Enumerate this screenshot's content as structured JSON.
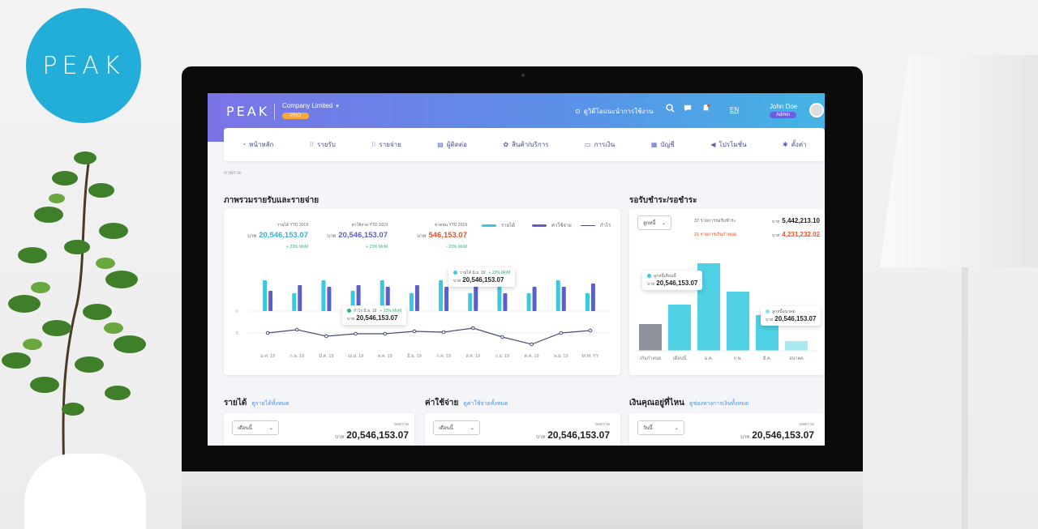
{
  "brand": {
    "circle_logo": "PEAK",
    "color": "#22aed8"
  },
  "header": {
    "logo": "PEAK",
    "company": "Company Limited",
    "plan_badge": "PRO",
    "guide_link": "ดูวิดีโอแนะนำการใช้งาน",
    "language": "EN",
    "user_name": "John Doe",
    "user_role": "Admin",
    "icons": [
      "search-icon",
      "chat-icon",
      "bell-icon"
    ]
  },
  "nav": {
    "items": [
      {
        "label": "หน้าหลัก",
        "icon": "dashboard-icon"
      },
      {
        "label": "รายรับ",
        "icon": "income-icon"
      },
      {
        "label": "รายจ่าย",
        "icon": "expense-icon"
      },
      {
        "label": "ผู้ติดต่อ",
        "icon": "contacts-icon"
      },
      {
        "label": "สินค้า/บริการ",
        "icon": "products-icon"
      },
      {
        "label": "การเงิน",
        "icon": "finance-icon"
      },
      {
        "label": "บัญชี",
        "icon": "accounting-icon"
      },
      {
        "label": "โปรโมชั่น",
        "icon": "promotion-icon"
      },
      {
        "label": "ตั้งค่า",
        "icon": "settings-icon"
      }
    ]
  },
  "breadcrumb": "ภาพรวม",
  "overview": {
    "title": "ภาพรวมรายรับและรายจ่าย",
    "kpis": [
      {
        "label": "รายได้ YTD 2019",
        "unit": "บาท",
        "value": "20,546,153.07",
        "change": "+ 23% MoM",
        "color": "#2bb3d6"
      },
      {
        "label": "ค่าใช้จ่าย YTD 2019",
        "unit": "บาท",
        "value": "20,546,153.07",
        "change": "+ 23% MoM",
        "color": "#5b5fc7"
      },
      {
        "label": "ขาดทุน YTD 2019",
        "unit": "บาท",
        "value": "546,153.07",
        "change": "- 23% MoM",
        "color": "#f04e23"
      }
    ],
    "legend": [
      {
        "label": "รายได้",
        "color": "#3cc8dc"
      },
      {
        "label": "ค่าใช้จ่าย",
        "color": "#5b5fc7"
      },
      {
        "label": "กำไร",
        "color": "#4a4d7a"
      }
    ],
    "tooltip_income": {
      "label": "รายได้ มิ.ย. 19",
      "change": "+ 23% MoM",
      "unit": "บาท",
      "value": "20,546,153.07"
    },
    "tooltip_profit": {
      "label": "กำไร มิ.ย. 19",
      "change": "+ 23% MoM",
      "unit": "บาท",
      "value": "20,546,153.07"
    }
  },
  "chart_data": [
    {
      "type": "bar",
      "categories": [
        "ม.ค. 19",
        "ก.พ. 19",
        "มี.ค. 19",
        "เม.ย. 19",
        "พ.ค. 19",
        "มิ.ย. 19",
        "ก.ค. 19",
        "ส.ค. 19",
        "ก.ย. 19",
        "ต.ค. 19",
        "พ.ย. 19",
        "M.M. YY"
      ],
      "y_tick_labels": [
        "0",
        "0"
      ],
      "series": [
        {
          "name": "รายได้",
          "type": "bar",
          "values": [
            38,
            22,
            38,
            25,
            38,
            22,
            38,
            22,
            38,
            22,
            38,
            22
          ]
        },
        {
          "name": "ค่าใช้จ่าย",
          "type": "bar",
          "values": [
            25,
            32,
            30,
            32,
            30,
            32,
            30,
            32,
            22,
            30,
            30,
            34
          ]
        },
        {
          "name": "กำไร",
          "type": "line",
          "values": [
            0,
            4,
            -4,
            -1,
            -1,
            2,
            1,
            6,
            -5,
            -14,
            0,
            3
          ]
        }
      ]
    },
    {
      "type": "bar",
      "categories": [
        "เกินกำหนด",
        "เดือนนี้",
        "ม.ค.",
        "ก.พ.",
        "มี.ค.",
        "อนาคต"
      ],
      "series": [
        {
          "name": "ลูกหนี้",
          "values": [
            33,
            57,
            108,
            73,
            44,
            12
          ]
        }
      ]
    }
  ],
  "receivable": {
    "title": "รอรับชำระ/รอชำระ",
    "filter": "ลูกหนี้",
    "rows": [
      {
        "label": "37 รายการรอรับชำระ",
        "unit": "บาท",
        "value": "5,442,213.10",
        "color": "#222"
      },
      {
        "label": "21 รายการเกินกำหนด",
        "unit": "บาท",
        "value": "4,231,232.02",
        "color": "#f04e23"
      }
    ],
    "tooltip_month": {
      "label": "ลูกหนี้เดือนนี้",
      "unit": "บาท",
      "value": "20,546,153.07"
    },
    "tooltip_future": {
      "label": "ลูกหนี้อนาคต",
      "unit": "บาท",
      "value": "20,546,153.07"
    }
  },
  "bottom": [
    {
      "title": "รายได้",
      "link": "ดูรายได้ทั้งหมด",
      "select": "เดือนนี้",
      "total_label": "ยอดรวม",
      "unit": "บาท",
      "value": "20,546,153.07"
    },
    {
      "title": "ค่าใช้จ่าย",
      "link": "ดูค่าใช้จ่ายทั้งหมด",
      "select": "เดือนนี้",
      "total_label": "ยอดรวม",
      "unit": "บาท",
      "value": "20,546,153.07"
    },
    {
      "title": "เงินคุณอยู่ที่ไหน",
      "link": "ดูช่องทางการเงินทั้งหมด",
      "select": "วันนี้",
      "total_label": "ยอดรวม",
      "unit": "บาท",
      "value": "20,546,153.07"
    }
  ]
}
